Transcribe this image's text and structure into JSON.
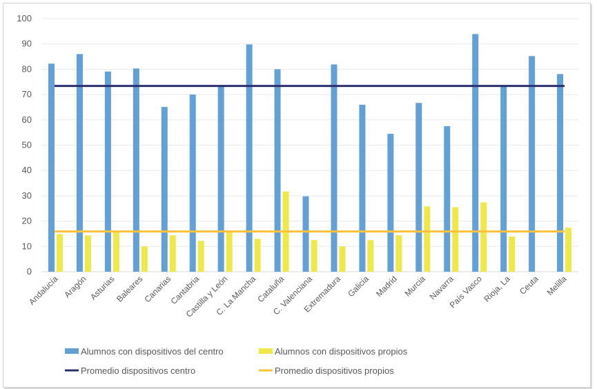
{
  "chart_data": {
    "type": "bar",
    "title": "",
    "xlabel": "",
    "ylabel": "",
    "ylim": [
      0,
      100
    ],
    "yticks": [
      0,
      10,
      20,
      30,
      40,
      50,
      60,
      70,
      80,
      90,
      100
    ],
    "grid": true,
    "legend_position": "bottom",
    "categories": [
      "Andalucía",
      "Aragón",
      "Asturias",
      "Baleares",
      "Canarias",
      "Cantabria",
      "Castilla y León",
      "C. La Mancha",
      "Cataluña",
      "C. Valenciana",
      "Extremadura",
      "Galicia",
      "Madrid",
      "Murcia",
      "Navarra",
      "País Vasco",
      "Rioja, La",
      "Ceuta",
      "Melilla"
    ],
    "series": [
      {
        "name": "Alumnos con dispositivos del centro",
        "kind": "bar",
        "color": "#62A0D5",
        "values": [
          82.2,
          86.0,
          79.1,
          80.3,
          65.1,
          70.0,
          73.4,
          89.8,
          80.0,
          29.8,
          81.9,
          66.0,
          54.5,
          66.7,
          57.5,
          93.9,
          73.1,
          85.2,
          78.1
        ]
      },
      {
        "name": "Alumnos con dispositivos propios",
        "kind": "bar",
        "color": "#EEE84A",
        "values": [
          14.9,
          14.4,
          15.9,
          10.0,
          14.4,
          12.2,
          15.9,
          13.0,
          31.7,
          12.5,
          10.0,
          12.5,
          14.4,
          25.8,
          25.5,
          27.4,
          13.9,
          0,
          17.4
        ]
      },
      {
        "name": "Promedio dispositivos centro",
        "kind": "line",
        "color": "#2B2F6E",
        "value": 73.4
      },
      {
        "name": "Promedio dispositivos propios",
        "kind": "line",
        "color": "#FDC13E",
        "value": 15.9
      }
    ]
  }
}
